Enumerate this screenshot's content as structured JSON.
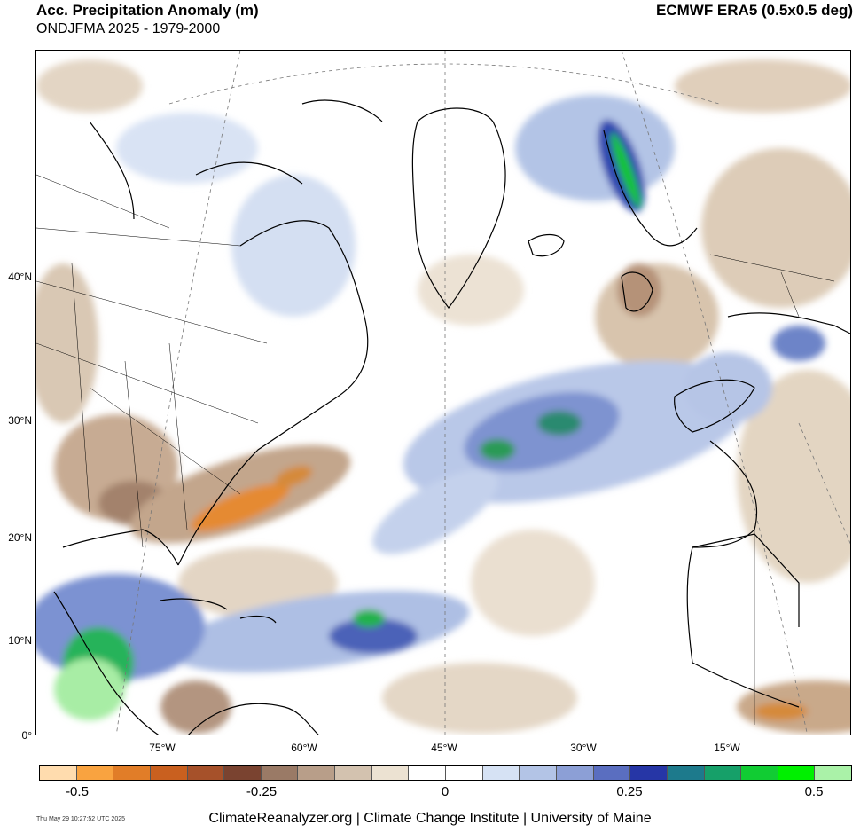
{
  "header": {
    "title": "Acc. Precipitation Anomaly (m)",
    "subtitle": "ONDJFMA 2025 - 1979-2000",
    "source": "ECMWF ERA5 (0.5x0.5 deg)"
  },
  "map": {
    "lat_labels": [
      "0°",
      "10°N",
      "20°N",
      "30°N",
      "40°N"
    ],
    "lon_labels": [
      "75°W",
      "60°W",
      "45°W",
      "30°W",
      "15°W"
    ]
  },
  "colorbar": {
    "colors": [
      "#ffdcae",
      "#f9a340",
      "#e17d28",
      "#c9601f",
      "#a6512a",
      "#7a4330",
      "#9a7a66",
      "#b89e89",
      "#d3c2af",
      "#ece2d2",
      "#ffffff",
      "#ffffff",
      "#d6e2f4",
      "#b3c4e6",
      "#8c9fd6",
      "#5a6ec0",
      "#2636a6",
      "#1d7a8c",
      "#16a069",
      "#11cc33",
      "#00f000",
      "#aaf2a8"
    ],
    "tick_labels": [
      "-0.5",
      "-0.25",
      "0",
      "0.25",
      "0.5"
    ],
    "tick_values": [
      -0.5,
      -0.25,
      0,
      0.25,
      0.5
    ]
  },
  "footer": {
    "timestamp": "Thu May 29 10:27:52 UTC 2025",
    "credit": "ClimateReanalyzer.org | Climate Change Institute | University of Maine"
  }
}
